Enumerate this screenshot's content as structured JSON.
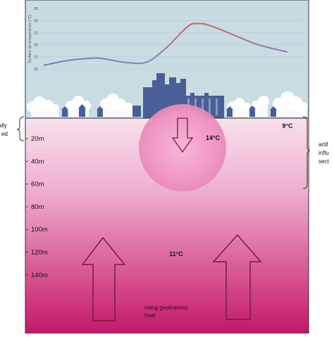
{
  "chart_data": {
    "type": "line",
    "ylabel": "Surface air temperature (°C)",
    "ylim": [
      25,
      35
    ],
    "y_ticks": [
      "35",
      "33",
      "31",
      "29",
      "27",
      "25"
    ],
    "grid": true,
    "line_colors": [
      "#6b82b8",
      "#e05a5a"
    ],
    "series": [
      {
        "points": [
          [
            0,
            25.6
          ],
          [
            0.1,
            26.4
          ],
          [
            0.22,
            26.8
          ],
          [
            0.33,
            26.1
          ],
          [
            0.42,
            26.1
          ],
          [
            0.5,
            28.4
          ],
          [
            0.59,
            32.0
          ],
          [
            0.63,
            32.5
          ],
          [
            0.68,
            32.2
          ],
          [
            0.78,
            30.6
          ],
          [
            0.88,
            29.0
          ],
          [
            1.0,
            27.8
          ]
        ]
      }
    ]
  },
  "diagram": {
    "left_label_line1": "ally",
    "left_label_line2": "ed",
    "right_label_line1": "artif",
    "right_label_line2": "influ",
    "right_label_line3": "sect",
    "depth_labels": [
      "20m",
      "40m",
      "60m",
      "80m",
      "100m",
      "120m",
      "140m"
    ],
    "temp_surface": "9°C",
    "temp_heat_island": "14°C",
    "temp_deep": "11°C",
    "geothermal_line1": "rising geothermal",
    "geothermal_line2": "heat",
    "colors": {
      "sky": "#c8dce2",
      "ground_top": "#f6dcea",
      "ground_bottom": "#c21868",
      "plume": "#f19cc8",
      "city": "#4a5f98",
      "arrow_stroke": "#7a1a3e"
    }
  }
}
